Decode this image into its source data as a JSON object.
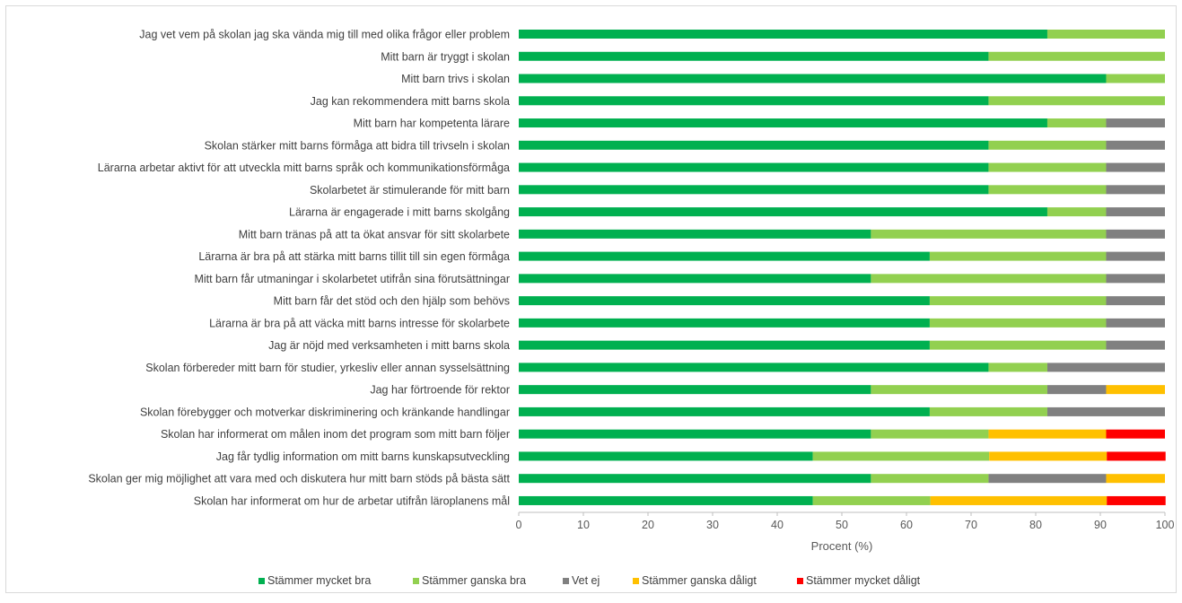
{
  "chart_data": {
    "type": "bar",
    "orientation": "horizontal",
    "stacked": true,
    "categories": [
      "Jag vet vem på skolan jag ska vända mig till med olika frågor eller problem",
      "Mitt barn är tryggt i skolan",
      "Mitt barn trivs i skolan",
      "Jag kan rekommendera mitt barns skola",
      "Mitt barn har kompetenta lärare",
      "Skolan stärker mitt barns förmåga att bidra till trivseln i skolan",
      "Lärarna arbetar aktivt för att utveckla mitt barns språk och kommunikationsförmåga",
      "Skolarbetet är stimulerande för mitt barn",
      "Lärarna är engagerade i mitt barns skolgång",
      "Mitt barn tränas på att ta ökat ansvar för sitt skolarbete",
      "Lärarna är bra på att stärka mitt barns tillit till sin egen förmåga",
      "Mitt barn får utmaningar i skolarbetet utifrån sina förutsättningar",
      "Mitt barn får det stöd och den hjälp som behövs",
      "Lärarna är bra på att väcka mitt barns intresse för skolarbete",
      "Jag är nöjd med verksamheten i mitt barns skola",
      "Skolan förbereder mitt barn för studier, yrkesliv eller annan sysselsättning",
      "Jag har förtroende för rektor",
      "Skolan förebygger och motverkar diskriminering och kränkande handlingar",
      "Skolan har informerat om målen inom det program som mitt barn följer",
      "Jag får tydlig information om mitt barns kunskapsutveckling",
      "Skolan ger mig möjlighet att vara med och diskutera hur mitt barn stöds på bästa sätt",
      "Skolan har informerat om hur de arbetar utifrån läroplanens mål"
    ],
    "series": [
      {
        "name": "Stämmer mycket bra",
        "color": "#00b050",
        "values": [
          81.8,
          72.7,
          90.9,
          72.7,
          81.8,
          72.7,
          72.7,
          72.7,
          81.8,
          54.5,
          63.6,
          54.5,
          63.6,
          63.6,
          63.6,
          72.7,
          54.5,
          63.6,
          54.5,
          45.5,
          54.5,
          45.5
        ]
      },
      {
        "name": "Stämmer ganska bra",
        "color": "#92d050",
        "values": [
          18.2,
          27.3,
          9.1,
          27.3,
          9.1,
          18.2,
          18.2,
          18.2,
          9.1,
          36.4,
          27.3,
          36.4,
          27.3,
          27.3,
          27.3,
          9.1,
          27.3,
          18.2,
          18.2,
          27.3,
          18.2,
          18.2
        ]
      },
      {
        "name": "Vet ej",
        "color": "#808080",
        "values": [
          0,
          0,
          0,
          0,
          9.1,
          9.1,
          9.1,
          9.1,
          9.1,
          9.1,
          9.1,
          9.1,
          9.1,
          9.1,
          9.1,
          18.2,
          9.1,
          18.2,
          0,
          0,
          18.2,
          0
        ]
      },
      {
        "name": "Stämmer ganska dåligt",
        "color": "#ffc000",
        "values": [
          0,
          0,
          0,
          0,
          0,
          0,
          0,
          0,
          0,
          0,
          0,
          0,
          0,
          0,
          0,
          0,
          9.1,
          0,
          18.2,
          18.2,
          9.1,
          27.3
        ]
      },
      {
        "name": "Stämmer mycket dåligt",
        "color": "#ff0000",
        "values": [
          0,
          0,
          0,
          0,
          0,
          0,
          0,
          0,
          0,
          0,
          0,
          0,
          0,
          0,
          0,
          0,
          0,
          0,
          9.1,
          9.1,
          0,
          9.1
        ]
      }
    ],
    "xlabel": "Procent (%)",
    "ylabel": "",
    "xlim": [
      0,
      100
    ],
    "xticks": [
      "0",
      "10",
      "20",
      "30",
      "40",
      "50",
      "60",
      "70",
      "80",
      "90",
      "100"
    ],
    "grid": false,
    "legend_position": "bottom"
  }
}
